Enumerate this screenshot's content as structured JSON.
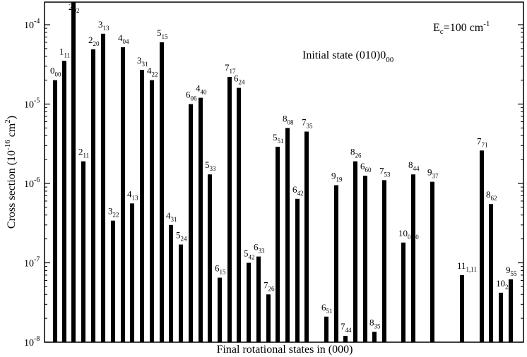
{
  "chart_data": {
    "type": "bar",
    "xlabel": "Final rotational states in (000)",
    "ylabel": {
      "main": "Cross section (10",
      "exp1": "-16",
      "mid": " cm",
      "exp2": "2",
      "end": ")"
    },
    "yscale": "log",
    "ylim": [
      1e-08,
      0.0002
    ],
    "yticks": [
      {
        "value": 1e-08,
        "base": "10",
        "exp": "-8"
      },
      {
        "value": 1e-07,
        "base": "10",
        "exp": "-7"
      },
      {
        "value": 1e-06,
        "base": "10",
        "exp": "-6"
      },
      {
        "value": 1e-05,
        "base": "10",
        "exp": "-5"
      },
      {
        "value": 0.0001,
        "base": "10",
        "exp": "-4"
      }
    ],
    "annotations": [
      {
        "main": "E",
        "sub": "c",
        "rest": "=100 cm",
        "sup": "-1",
        "placement": "top-right"
      },
      {
        "main": "Initial state (010)0",
        "sub": "00",
        "placement": "upper-middle"
      }
    ],
    "bars": [
      {
        "state": "0",
        "sub": "00",
        "value": 2e-05
      },
      {
        "state": "1",
        "sub": "11",
        "value": 3.5e-05
      },
      {
        "state": "2",
        "sub": "02",
        "value": 0.0002
      },
      {
        "state": "2",
        "sub": "11",
        "value": 1.9e-06
      },
      {
        "state": "2",
        "sub": "20",
        "value": 4.9e-05
      },
      {
        "state": "3",
        "sub": "13",
        "value": 7.7e-05
      },
      {
        "state": "3",
        "sub": "22",
        "value": 3.4e-07
      },
      {
        "state": "4",
        "sub": "04",
        "value": 5.2e-05
      },
      {
        "state": "4",
        "sub": "13",
        "value": 5.6e-07
      },
      {
        "state": "3",
        "sub": "31",
        "value": 2.7e-05
      },
      {
        "state": "4",
        "sub": "22",
        "value": 2e-05
      },
      {
        "state": "4",
        "sub": "31",
        "value": 3e-07
      },
      {
        "state": "5",
        "sub": "15",
        "value": 6e-05
      },
      {
        "state": "5",
        "sub": "24",
        "value": 1.7e-07
      },
      {
        "state": "6",
        "sub": "06",
        "value": 1e-05
      },
      {
        "state": "4",
        "sub": "40",
        "value": 1.2e-05
      },
      {
        "state": "5",
        "sub": "33",
        "value": 1.3e-06
      },
      {
        "state": "6",
        "sub": "15",
        "value": 6.5e-08
      },
      {
        "state": "7",
        "sub": "17",
        "value": 2.2e-05
      },
      {
        "state": "6",
        "sub": "24",
        "value": 1.6e-05
      },
      {
        "state": "5",
        "sub": "42",
        "value": 1e-07
      },
      {
        "state": "6",
        "sub": "33",
        "value": 1.2e-07
      },
      {
        "state": "7",
        "sub": "26",
        "value": 4e-08
      },
      {
        "state": "5",
        "sub": "51",
        "value": 2.9e-06
      },
      {
        "state": "8",
        "sub": "08",
        "value": 5e-06
      },
      {
        "state": "6",
        "sub": "42",
        "value": 6.4e-07
      },
      {
        "state": "7",
        "sub": "35",
        "value": 4.5e-06
      },
      {
        "state": "6",
        "sub": "51",
        "value": 2.1e-08
      },
      {
        "state": "9",
        "sub": "19",
        "value": 9.5e-07
      },
      {
        "state": "7",
        "sub": "44",
        "value": 1.2e-08
      },
      {
        "state": "8",
        "sub": "26",
        "value": 1.9e-06
      },
      {
        "state": "6",
        "sub": "60",
        "value": 1.25e-06
      },
      {
        "state": "8",
        "sub": "35",
        "value": 1.35e-08
      },
      {
        "state": "7",
        "sub": "53",
        "value": 1.1e-06
      },
      {
        "state": "10",
        "sub": "0,10",
        "value": 1.8e-07
      },
      {
        "state": "8",
        "sub": "44",
        "value": 1.3e-06
      },
      {
        "state": "9",
        "sub": "37",
        "value": 1.05e-06
      },
      {
        "state": "11",
        "sub": "1,11",
        "value": 7e-08
      },
      {
        "state": "7",
        "sub": "71",
        "value": 2.6e-06
      },
      {
        "state": "8",
        "sub": "62",
        "value": 5.5e-07
      },
      {
        "state": "10",
        "sub": "28",
        "value": 4.2e-08
      },
      {
        "state": "9",
        "sub": "55",
        "value": 6.2e-08
      }
    ]
  }
}
